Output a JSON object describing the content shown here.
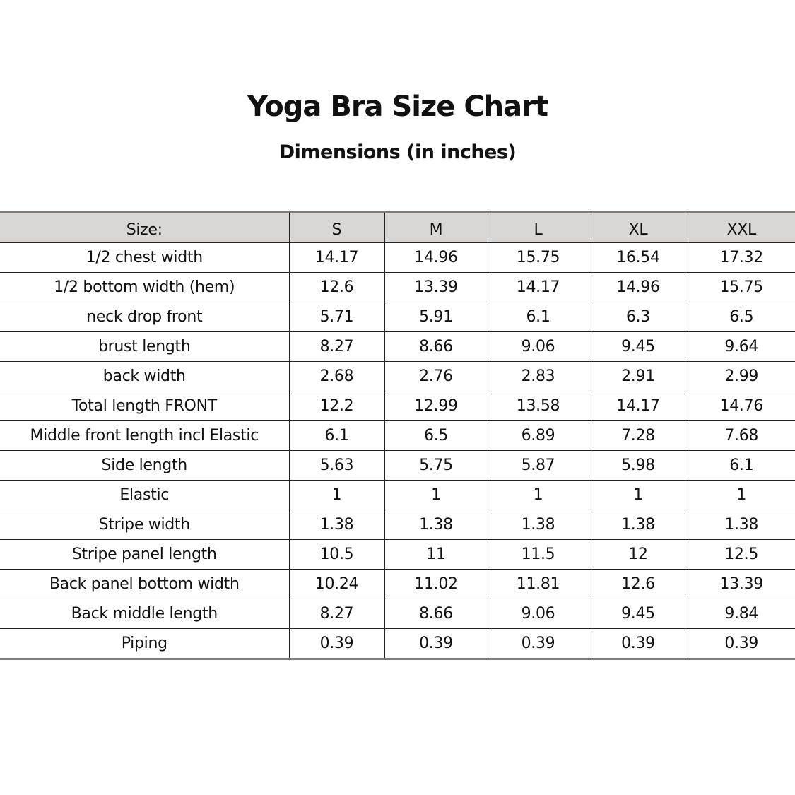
{
  "title": "Yoga Bra Size Chart",
  "subtitle": "Dimensions (in inches)",
  "table": {
    "header_label": "Size:",
    "sizes": [
      "S",
      "M",
      "L",
      "XL",
      "XXL"
    ],
    "rows": [
      {
        "label": "1/2 chest width",
        "values": [
          "14.17",
          "14.96",
          "15.75",
          "16.54",
          "17.32"
        ]
      },
      {
        "label": "1/2 bottom width (hem)",
        "values": [
          "12.6",
          "13.39",
          "14.17",
          "14.96",
          "15.75"
        ]
      },
      {
        "label": "neck drop front",
        "values": [
          "5.71",
          "5.91",
          "6.1",
          "6.3",
          "6.5"
        ]
      },
      {
        "label": "brust length",
        "values": [
          "8.27",
          "8.66",
          "9.06",
          "9.45",
          "9.64"
        ]
      },
      {
        "label": "back width",
        "values": [
          "2.68",
          "2.76",
          "2.83",
          "2.91",
          "2.99"
        ]
      },
      {
        "label": "Total length FRONT",
        "values": [
          "12.2",
          "12.99",
          "13.58",
          "14.17",
          "14.76"
        ]
      },
      {
        "label": "Middle front length incl Elastic",
        "values": [
          "6.1",
          "6.5",
          "6.89",
          "7.28",
          "7.68"
        ]
      },
      {
        "label": "Side length",
        "values": [
          "5.63",
          "5.75",
          "5.87",
          "5.98",
          "6.1"
        ]
      },
      {
        "label": "Elastic",
        "values": [
          "1",
          "1",
          "1",
          "1",
          "1"
        ]
      },
      {
        "label": "Stripe width",
        "values": [
          "1.38",
          "1.38",
          "1.38",
          "1.38",
          "1.38"
        ]
      },
      {
        "label": "Stripe panel length",
        "values": [
          "10.5",
          "11",
          "11.5",
          "12",
          "12.5"
        ]
      },
      {
        "label": "Back panel bottom width",
        "values": [
          "10.24",
          "11.02",
          "11.81",
          "12.6",
          "13.39"
        ]
      },
      {
        "label": "Back middle length",
        "values": [
          "8.27",
          "8.66",
          "9.06",
          "9.45",
          "9.84"
        ]
      },
      {
        "label": "Piping",
        "values": [
          "0.39",
          "0.39",
          "0.39",
          "0.39",
          "0.39"
        ]
      }
    ]
  },
  "colors": {
    "header_bg": "#d9d6d3",
    "rule": "#7a7a7a"
  }
}
